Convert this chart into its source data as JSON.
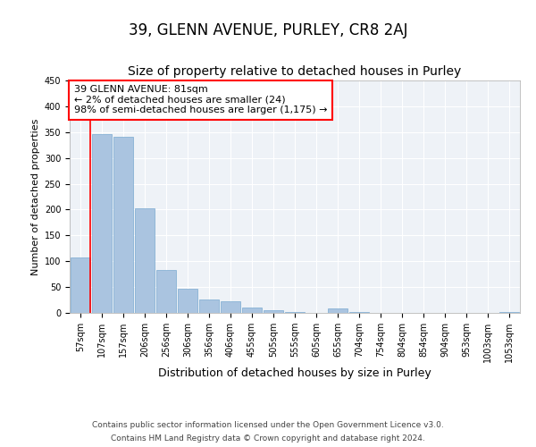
{
  "title": "39, GLENN AVENUE, PURLEY, CR8 2AJ",
  "subtitle": "Size of property relative to detached houses in Purley",
  "xlabel": "Distribution of detached houses by size in Purley",
  "ylabel": "Number of detached properties",
  "categories": [
    "57sqm",
    "107sqm",
    "157sqm",
    "206sqm",
    "256sqm",
    "306sqm",
    "356sqm",
    "406sqm",
    "455sqm",
    "505sqm",
    "555sqm",
    "605sqm",
    "655sqm",
    "704sqm",
    "754sqm",
    "804sqm",
    "854sqm",
    "904sqm",
    "953sqm",
    "1003sqm",
    "1053sqm"
  ],
  "values": [
    108,
    347,
    341,
    202,
    83,
    46,
    26,
    23,
    11,
    5,
    2,
    0,
    8,
    1,
    0,
    0,
    0,
    0,
    0,
    0,
    2
  ],
  "bar_color": "#aac4e0",
  "bar_edge_color": "#7aaad0",
  "annotation_box_text": "39 GLENN AVENUE: 81sqm\n← 2% of detached houses are smaller (24)\n98% of semi-detached houses are larger (1,175) →",
  "red_line_x": 0.45,
  "ylim": [
    0,
    450
  ],
  "yticks": [
    0,
    50,
    100,
    150,
    200,
    250,
    300,
    350,
    400,
    450
  ],
  "footer_line1": "Contains HM Land Registry data © Crown copyright and database right 2024.",
  "footer_line2": "Contains public sector information licensed under the Open Government Licence v3.0.",
  "bg_color": "#eef2f7",
  "grid_color": "#ffffff",
  "title_fontsize": 12,
  "subtitle_fontsize": 10,
  "xlabel_fontsize": 9,
  "ylabel_fontsize": 8,
  "tick_fontsize": 7,
  "footer_fontsize": 6.5,
  "annot_fontsize": 8
}
